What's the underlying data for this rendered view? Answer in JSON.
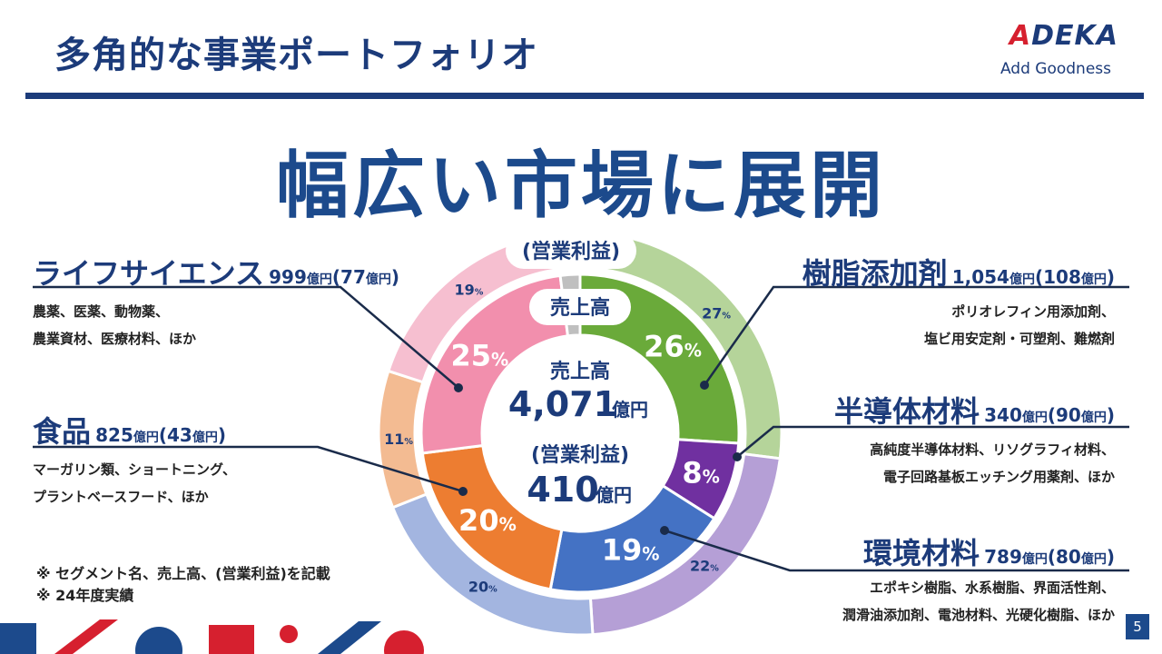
{
  "header": {
    "title": "多角的な事業ポートフォリオ",
    "logo_text": "DEKA",
    "logo_letter": "A",
    "logo_tagline": "Add Goodness"
  },
  "headline": "幅広い市場に展開",
  "center": {
    "sales_label": "売上高",
    "sales_value": "4,071",
    "sales_unit": "億円",
    "profit_label": "(営業利益)",
    "profit_value": "410",
    "profit_unit": "億円"
  },
  "ring_labels": {
    "outer": "(営業利益)",
    "inner": "売上高"
  },
  "segments": [
    {
      "name": "樹脂添加剤",
      "sales": "1,054",
      "profit": "108",
      "unit": "億円",
      "desc": [
        "ポリオレフィン用添加剤、",
        "塩ビ用安定剤・可塑剤、難燃剤"
      ]
    },
    {
      "name": "半導体材料",
      "sales": "340",
      "profit": "90",
      "unit": "億円",
      "desc": [
        "高純度半導体材料、リソグラフィ材料、",
        "電子回路基板エッチング用薬剤、ほか"
      ]
    },
    {
      "name": "環境材料",
      "sales": "789",
      "profit": "80",
      "unit": "億円",
      "desc": [
        "エポキシ樹脂、水系樹脂、界面活性剤、",
        "潤滑油添加剤、電池材料、光硬化樹脂、ほか"
      ]
    },
    {
      "name": "食品",
      "sales": "825",
      "profit": "43",
      "unit": "億円",
      "desc": [
        "マーガリン類、ショートニング、",
        "プラントベースフード、ほか"
      ]
    },
    {
      "name": "ライフサイエンス",
      "sales": "999",
      "profit": "77",
      "unit": "億円",
      "desc": [
        "農薬、医薬、動物薬、",
        "農業資材、医療材料、ほか"
      ]
    }
  ],
  "chart_data": {
    "type": "pie",
    "series": [
      {
        "name": "売上高",
        "categories": [
          "樹脂添加剤",
          "半導体材料",
          "環境材料",
          "食品",
          "ライフサイエンス"
        ],
        "values": [
          26,
          8,
          19,
          20,
          25
        ],
        "labels": [
          "26",
          "8",
          "19",
          "20",
          "25"
        ],
        "colors": [
          "#6aaa3a",
          "#7030a0",
          "#4472c4",
          "#ed7d31",
          "#f28fad"
        ]
      },
      {
        "name": "(営業利益)",
        "categories": [
          "樹脂添加剤",
          "半導体材料",
          "環境材料",
          "食品",
          "ライフサイエンス"
        ],
        "values": [
          27,
          22,
          20,
          11,
          19
        ],
        "labels": [
          "27",
          "22",
          "20",
          "11",
          "19"
        ],
        "colors": [
          "#b5d49a",
          "#b59fd6",
          "#a3b5e0",
          "#f3bb92",
          "#f6bfd0"
        ]
      }
    ],
    "other_color": "#bfbfbf",
    "percent_sign": "%"
  },
  "notes": [
    "※ セグメント名、売上高、(営業利益)を記載",
    "※ 24年度実績"
  ],
  "page_number": "5"
}
